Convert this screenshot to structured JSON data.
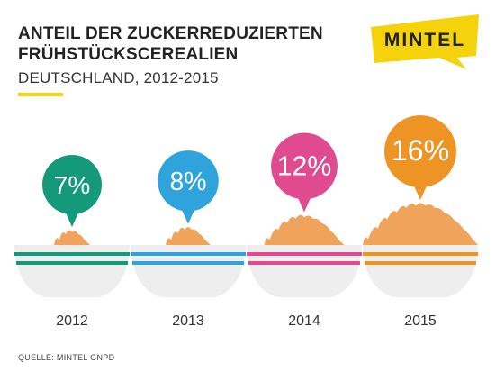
{
  "header": {
    "title_line1": "ANTEIL DER ZUCKERREDUZIERTEN",
    "title_line2": "FRÜHSTÜCKSCEREALIEN",
    "subtitle": "DEUTSCHLAND, 2012-2015"
  },
  "logo": {
    "text": "MINTEL",
    "color": "#f5d30c"
  },
  "source": "QUELLE: MINTEL GNPD",
  "colors": {
    "cereal": "#f0a35a",
    "bowl": "#eeeeee"
  },
  "chart_data": {
    "type": "bar",
    "categories": [
      "2012",
      "2013",
      "2014",
      "2015"
    ],
    "values": [
      7,
      8,
      12,
      16
    ],
    "value_labels": [
      "7%",
      "8%",
      "12%",
      "16%"
    ],
    "colors": [
      "#149a7b",
      "#2fa3db",
      "#e04a8f",
      "#ee9425"
    ]
  }
}
